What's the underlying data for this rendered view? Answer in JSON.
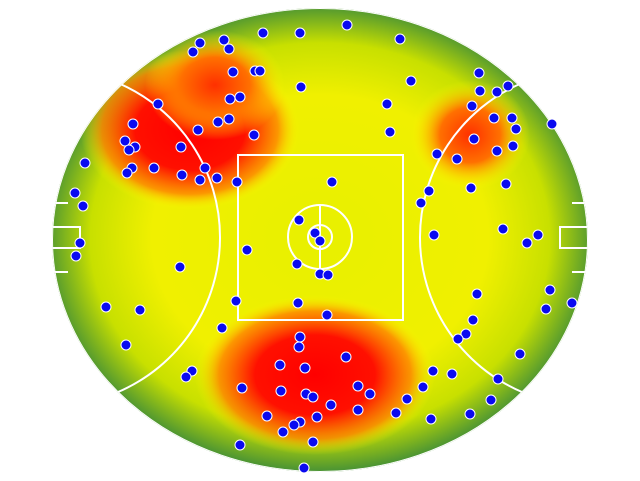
{
  "chart_data": {
    "type": "scatter",
    "color": "#0a0af0",
    "x": [
      347,
      263,
      300,
      200,
      224,
      193,
      229,
      400,
      233,
      255,
      260,
      411,
      479,
      301,
      480,
      497,
      508,
      158,
      230,
      240,
      387,
      472,
      494,
      512,
      133,
      218,
      229,
      198,
      254,
      390,
      552,
      516,
      474,
      125,
      135,
      129,
      181,
      513,
      497,
      437,
      457,
      85,
      132,
      127,
      154,
      205,
      182,
      200,
      217,
      237,
      332,
      506,
      471,
      75,
      429,
      83,
      421,
      299,
      315,
      320,
      434,
      503,
      538,
      527,
      80,
      76,
      247,
      297,
      180,
      320,
      328,
      550,
      477,
      236,
      298,
      106,
      140,
      546,
      572,
      327,
      222,
      473,
      300,
      466,
      458,
      299,
      126,
      520,
      346,
      280,
      305,
      433,
      452,
      192,
      186,
      498,
      242,
      358,
      423,
      281,
      306,
      370,
      313,
      407,
      491,
      358,
      331,
      267,
      317,
      396,
      470,
      300,
      431,
      294,
      283,
      240,
      313,
      304
    ],
    "y": [
      25,
      33,
      33,
      43,
      40,
      52,
      49,
      39,
      72,
      71,
      71,
      81,
      73,
      87,
      91,
      92,
      86,
      104,
      99,
      97,
      104,
      106,
      118,
      118,
      124,
      122,
      119,
      130,
      135,
      132,
      124,
      129,
      139,
      141,
      147,
      150,
      147,
      146,
      151,
      154,
      159,
      163,
      168,
      173,
      168,
      168,
      175,
      180,
      178,
      182,
      182,
      184,
      188,
      193,
      191,
      206,
      203,
      220,
      233,
      241,
      235,
      229,
      235,
      243,
      243,
      256,
      250,
      264,
      267,
      274,
      275,
      290,
      294,
      301,
      303,
      307,
      310,
      309,
      303,
      315,
      328,
      320,
      337,
      334,
      339,
      347,
      345,
      354,
      357,
      365,
      368,
      371,
      374,
      371,
      377,
      379,
      388,
      386,
      387,
      391,
      394,
      394,
      397,
      399,
      400,
      410,
      405,
      416,
      417,
      413,
      414,
      422,
      419,
      425,
      432,
      445,
      442,
      468
    ]
  }
}
